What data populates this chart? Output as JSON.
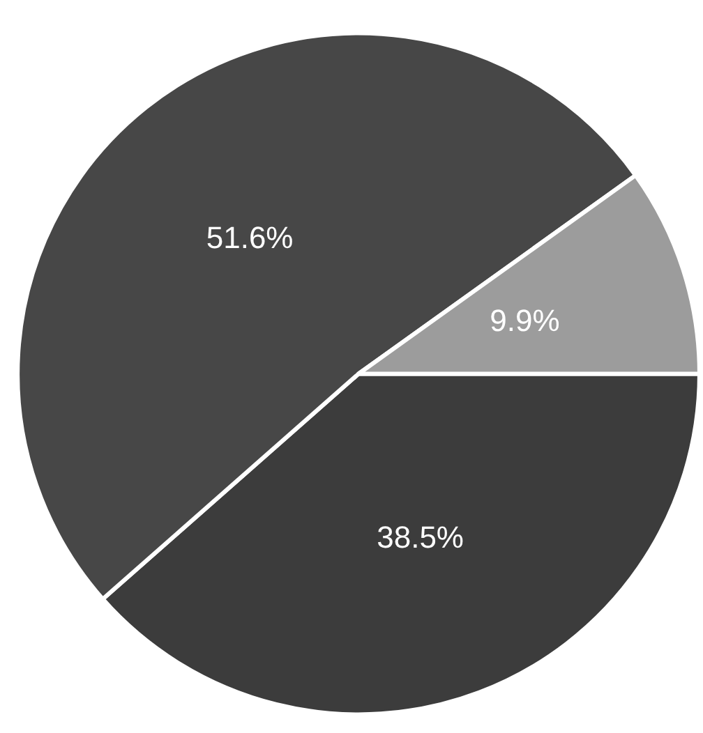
{
  "chart_data": {
    "type": "pie",
    "categories": [
      null,
      null,
      null
    ],
    "values": [
      38.5,
      51.6,
      9.9
    ],
    "colors": [
      "#3c3c3c",
      "#474747",
      "#9c9c9c"
    ],
    "value_labels": [
      "38.5%",
      "51.6%",
      "9.9%"
    ]
  }
}
